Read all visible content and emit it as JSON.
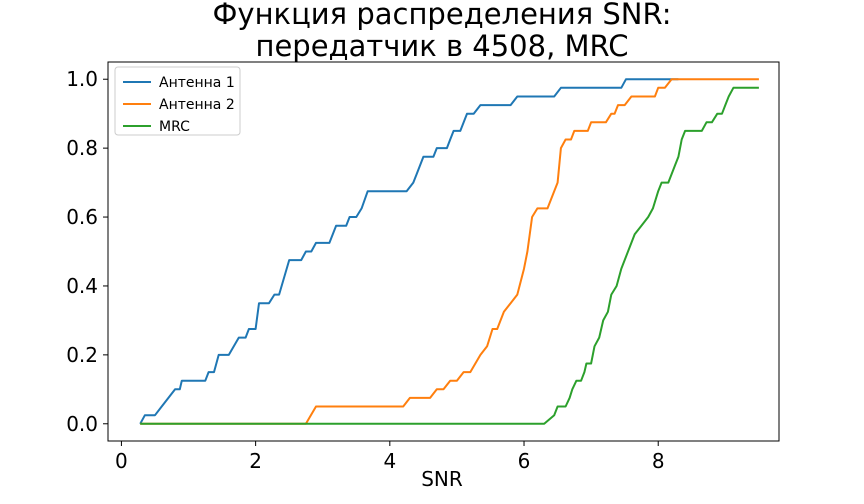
{
  "chart_data": {
    "type": "line",
    "title_lines": [
      "Функция распределения SNR:",
      "передатчик в 4508, MRC"
    ],
    "xlabel": "SNR",
    "ylabel": "",
    "xlim": [
      -0.2,
      9.8
    ],
    "ylim": [
      -0.05,
      1.05
    ],
    "xticks": [
      0,
      2,
      4,
      6,
      8
    ],
    "yticks": [
      0.0,
      0.2,
      0.4,
      0.6,
      0.8,
      1.0
    ],
    "xtick_labels": [
      "0",
      "2",
      "4",
      "6",
      "8"
    ],
    "ytick_labels": [
      "0.0",
      "0.2",
      "0.4",
      "0.6",
      "0.8",
      "1.0"
    ],
    "grid": false,
    "legend_position": "upper left",
    "series": [
      {
        "name": "Антенна 1",
        "color": "#1f77b4",
        "points": [
          [
            0.28,
            0.0
          ],
          [
            0.35,
            0.025
          ],
          [
            0.5,
            0.025
          ],
          [
            0.6,
            0.05
          ],
          [
            0.7,
            0.075
          ],
          [
            0.8,
            0.1
          ],
          [
            0.87,
            0.1
          ],
          [
            0.9,
            0.125
          ],
          [
            1.0,
            0.125
          ],
          [
            1.25,
            0.125
          ],
          [
            1.3,
            0.15
          ],
          [
            1.38,
            0.15
          ],
          [
            1.45,
            0.2
          ],
          [
            1.6,
            0.2
          ],
          [
            1.75,
            0.25
          ],
          [
            1.85,
            0.25
          ],
          [
            1.9,
            0.275
          ],
          [
            2.0,
            0.275
          ],
          [
            2.05,
            0.35
          ],
          [
            2.2,
            0.35
          ],
          [
            2.28,
            0.375
          ],
          [
            2.35,
            0.375
          ],
          [
            2.5,
            0.475
          ],
          [
            2.68,
            0.475
          ],
          [
            2.75,
            0.5
          ],
          [
            2.83,
            0.5
          ],
          [
            2.9,
            0.525
          ],
          [
            3.1,
            0.525
          ],
          [
            3.2,
            0.575
          ],
          [
            3.35,
            0.575
          ],
          [
            3.4,
            0.6
          ],
          [
            3.5,
            0.6
          ],
          [
            3.58,
            0.625
          ],
          [
            3.67,
            0.675
          ],
          [
            3.9,
            0.675
          ],
          [
            4.25,
            0.675
          ],
          [
            4.35,
            0.7
          ],
          [
            4.4,
            0.725
          ],
          [
            4.5,
            0.775
          ],
          [
            4.65,
            0.775
          ],
          [
            4.7,
            0.8
          ],
          [
            4.85,
            0.8
          ],
          [
            4.9,
            0.825
          ],
          [
            4.95,
            0.85
          ],
          [
            5.05,
            0.85
          ],
          [
            5.15,
            0.9
          ],
          [
            5.25,
            0.9
          ],
          [
            5.35,
            0.925
          ],
          [
            5.5,
            0.925
          ],
          [
            5.8,
            0.925
          ],
          [
            5.9,
            0.95
          ],
          [
            6.1,
            0.95
          ],
          [
            6.45,
            0.95
          ],
          [
            6.55,
            0.975
          ],
          [
            6.9,
            0.975
          ],
          [
            7.45,
            0.975
          ],
          [
            7.52,
            1.0
          ],
          [
            8.1,
            1.0
          ],
          [
            8.3,
            1.0
          ]
        ]
      },
      {
        "name": "Антенна 2",
        "color": "#ff7f0e",
        "points": [
          [
            0.28,
            0.0
          ],
          [
            1.5,
            0.0
          ],
          [
            2.75,
            0.0
          ],
          [
            2.9,
            0.05
          ],
          [
            3.2,
            0.05
          ],
          [
            4.2,
            0.05
          ],
          [
            4.3,
            0.075
          ],
          [
            4.6,
            0.075
          ],
          [
            4.7,
            0.1
          ],
          [
            4.8,
            0.1
          ],
          [
            4.9,
            0.125
          ],
          [
            5.0,
            0.125
          ],
          [
            5.1,
            0.15
          ],
          [
            5.2,
            0.15
          ],
          [
            5.35,
            0.2
          ],
          [
            5.45,
            0.225
          ],
          [
            5.53,
            0.275
          ],
          [
            5.6,
            0.275
          ],
          [
            5.7,
            0.325
          ],
          [
            5.8,
            0.35
          ],
          [
            5.9,
            0.375
          ],
          [
            6.0,
            0.45
          ],
          [
            6.05,
            0.5
          ],
          [
            6.12,
            0.6
          ],
          [
            6.2,
            0.625
          ],
          [
            6.35,
            0.625
          ],
          [
            6.45,
            0.675
          ],
          [
            6.5,
            0.7
          ],
          [
            6.55,
            0.8
          ],
          [
            6.62,
            0.825
          ],
          [
            6.7,
            0.825
          ],
          [
            6.75,
            0.85
          ],
          [
            6.95,
            0.85
          ],
          [
            7.0,
            0.875
          ],
          [
            7.22,
            0.875
          ],
          [
            7.3,
            0.9
          ],
          [
            7.35,
            0.9
          ],
          [
            7.4,
            0.925
          ],
          [
            7.5,
            0.925
          ],
          [
            7.6,
            0.95
          ],
          [
            7.95,
            0.95
          ],
          [
            8.0,
            0.975
          ],
          [
            8.1,
            0.975
          ],
          [
            8.2,
            1.0
          ],
          [
            8.5,
            1.0
          ],
          [
            9.5,
            1.0
          ]
        ]
      },
      {
        "name": "MRC",
        "color": "#2ca02c",
        "points": [
          [
            0.28,
            0.0
          ],
          [
            1.5,
            0.0
          ],
          [
            3.0,
            0.0
          ],
          [
            4.5,
            0.0
          ],
          [
            6.0,
            0.0
          ],
          [
            6.3,
            0.0
          ],
          [
            6.45,
            0.025
          ],
          [
            6.5,
            0.05
          ],
          [
            6.62,
            0.05
          ],
          [
            6.68,
            0.075
          ],
          [
            6.72,
            0.1
          ],
          [
            6.78,
            0.125
          ],
          [
            6.85,
            0.125
          ],
          [
            6.9,
            0.15
          ],
          [
            6.93,
            0.175
          ],
          [
            7.0,
            0.175
          ],
          [
            7.05,
            0.225
          ],
          [
            7.12,
            0.25
          ],
          [
            7.18,
            0.3
          ],
          [
            7.25,
            0.325
          ],
          [
            7.3,
            0.375
          ],
          [
            7.38,
            0.4
          ],
          [
            7.45,
            0.45
          ],
          [
            7.55,
            0.5
          ],
          [
            7.65,
            0.55
          ],
          [
            7.75,
            0.575
          ],
          [
            7.85,
            0.6
          ],
          [
            7.92,
            0.625
          ],
          [
            8.0,
            0.675
          ],
          [
            8.05,
            0.7
          ],
          [
            8.15,
            0.7
          ],
          [
            8.25,
            0.75
          ],
          [
            8.3,
            0.775
          ],
          [
            8.35,
            0.825
          ],
          [
            8.4,
            0.85
          ],
          [
            8.55,
            0.85
          ],
          [
            8.65,
            0.85
          ],
          [
            8.72,
            0.875
          ],
          [
            8.8,
            0.875
          ],
          [
            8.88,
            0.9
          ],
          [
            8.95,
            0.9
          ],
          [
            9.0,
            0.925
          ],
          [
            9.05,
            0.95
          ],
          [
            9.12,
            0.975
          ],
          [
            9.2,
            0.975
          ],
          [
            9.5,
            0.975
          ]
        ]
      }
    ],
    "style": {
      "background": "#ffffff",
      "axes_color": "#000000"
    }
  }
}
